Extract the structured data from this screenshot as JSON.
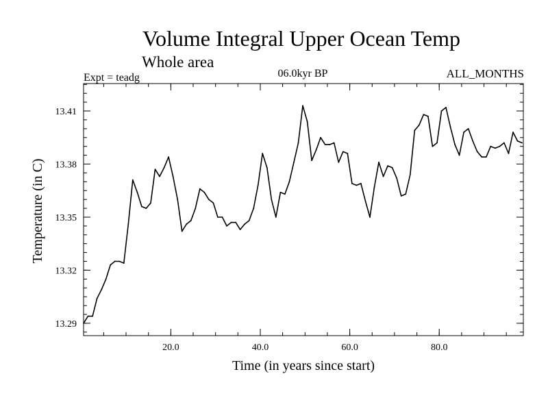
{
  "chart_data": {
    "type": "line",
    "title": "Volume Integral Upper Ocean Temp",
    "subtitle": "Whole area",
    "left_note": "Expt = teadg",
    "center_note": "06.0kyr BP",
    "right_note": "ALL_MONTHS",
    "xlabel": "Time (in years since start)",
    "ylabel": "Temperature (in C)",
    "xlim": [
      0.5,
      98.8
    ],
    "ylim": [
      13.283,
      13.4255
    ],
    "xticks": [
      20,
      40,
      60,
      80
    ],
    "xtick_labels": [
      "20.0",
      "40.0",
      "60.0",
      "80.0"
    ],
    "yticks": [
      13.29,
      13.32,
      13.35,
      13.38,
      13.41
    ],
    "ytick_labels": [
      "13.29",
      "13.32",
      "13.35",
      "13.38",
      "13.41"
    ],
    "grid": false,
    "series": [
      {
        "name": "Volume Integral Upper Ocean Temp",
        "color": "#000000",
        "x": [
          0.5,
          1.5,
          2.5,
          3.5,
          4.5,
          5.5,
          6.5,
          7.5,
          8.5,
          9.5,
          10.5,
          11.5,
          12.5,
          13.5,
          14.5,
          15.5,
          16.5,
          17.5,
          18.5,
          19.5,
          20.5,
          21.5,
          22.5,
          23.5,
          24.5,
          25.5,
          26.5,
          27.5,
          28.5,
          29.5,
          30.5,
          31.5,
          32.5,
          33.5,
          34.5,
          35.5,
          36.5,
          37.5,
          38.5,
          39.5,
          40.5,
          41.5,
          42.5,
          43.5,
          44.5,
          45.5,
          46.5,
          47.5,
          48.5,
          49.5,
          50.5,
          51.5,
          52.5,
          53.5,
          54.5,
          55.5,
          56.5,
          57.5,
          58.5,
          59.5,
          60.5,
          61.5,
          62.5,
          63.5,
          64.5,
          65.5,
          66.5,
          67.5,
          68.5,
          69.5,
          70.5,
          71.5,
          72.5,
          73.5,
          74.5,
          75.5,
          76.5,
          77.5,
          78.5,
          79.5,
          80.5,
          81.5,
          82.5,
          83.5,
          84.5,
          85.5,
          86.5,
          87.5,
          88.5,
          89.5,
          90.5,
          91.5,
          92.5,
          93.5,
          94.5,
          95.5,
          96.5,
          97.5,
          98.5
        ],
        "values": [
          13.29,
          13.294,
          13.294,
          13.304,
          13.309,
          13.315,
          13.323,
          13.325,
          13.325,
          13.324,
          13.346,
          13.371,
          13.364,
          13.356,
          13.355,
          13.358,
          13.377,
          13.373,
          13.378,
          13.384,
          13.373,
          13.36,
          13.342,
          13.346,
          13.348,
          13.355,
          13.366,
          13.364,
          13.36,
          13.358,
          13.35,
          13.35,
          13.345,
          13.347,
          13.347,
          13.343,
          13.346,
          13.348,
          13.355,
          13.368,
          13.386,
          13.378,
          13.36,
          13.35,
          13.364,
          13.363,
          13.37,
          13.381,
          13.392,
          13.413,
          13.404,
          13.382,
          13.388,
          13.395,
          13.391,
          13.391,
          13.392,
          13.381,
          13.387,
          13.386,
          13.369,
          13.368,
          13.369,
          13.359,
          13.35,
          13.367,
          13.381,
          13.373,
          13.379,
          13.378,
          13.372,
          13.362,
          13.363,
          13.374,
          13.399,
          13.402,
          13.408,
          13.407,
          13.39,
          13.392,
          13.41,
          13.412,
          13.401,
          13.391,
          13.385,
          13.398,
          13.4,
          13.393,
          13.387,
          13.384,
          13.384,
          13.39,
          13.389,
          13.39,
          13.392,
          13.386,
          13.398,
          13.393,
          13.392
        ]
      }
    ]
  }
}
